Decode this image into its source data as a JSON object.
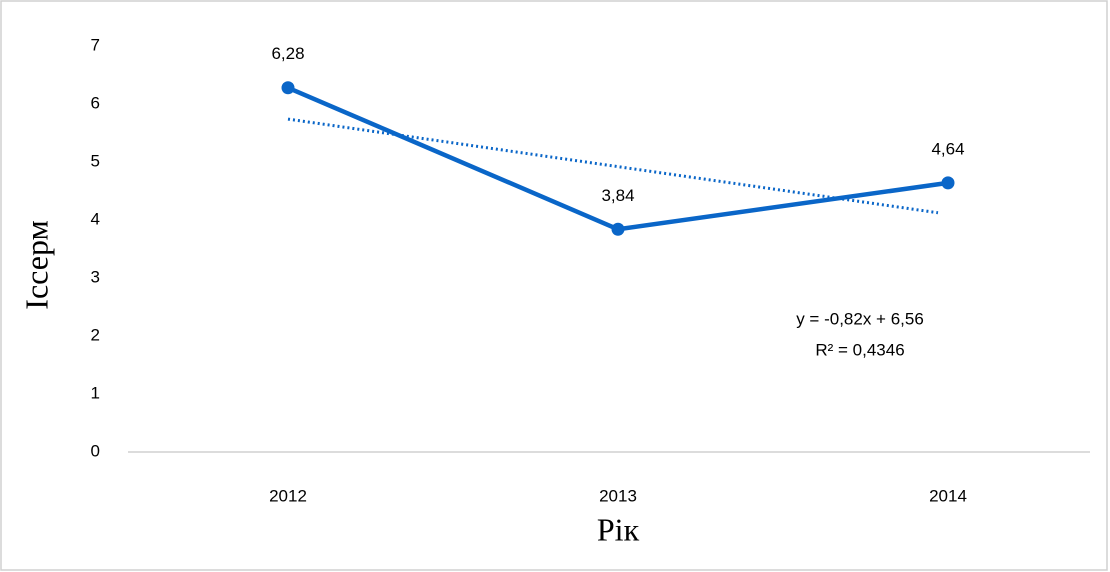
{
  "chart_data": {
    "type": "line",
    "categories": [
      "2012",
      "2013",
      "2014"
    ],
    "values": [
      6.28,
      3.84,
      4.64
    ],
    "value_labels": [
      "6,28",
      "3,84",
      "4,64"
    ],
    "color": "#0a66c8",
    "ylim": [
      0,
      7
    ],
    "yticks": [
      0,
      1,
      2,
      3,
      4,
      5,
      6,
      7
    ],
    "x_label": "Рік",
    "y_label": "Іссерм",
    "trendline": "linear",
    "trendline_equation": "y = -0,82x + 6,56",
    "trendline_r2": "R² = 0,4346"
  }
}
